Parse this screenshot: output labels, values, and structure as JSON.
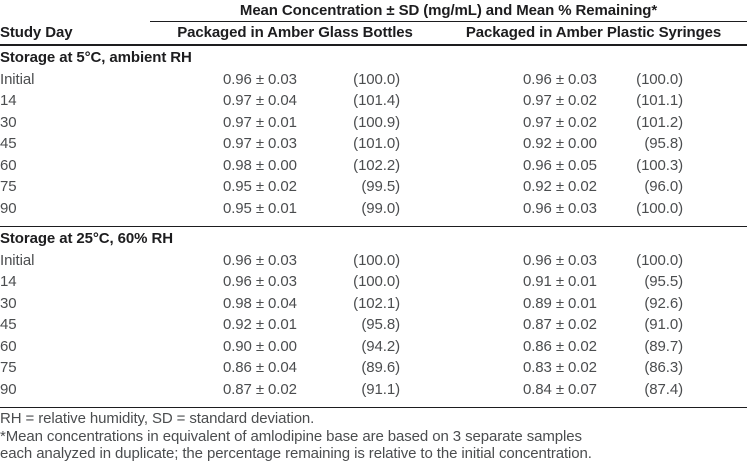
{
  "table": {
    "span_header": "Mean Concentration ± SD (mg/mL) and Mean % Remaining*",
    "columns": [
      "Study Day",
      "Packaged in Amber Glass Bottles",
      "Packaged in Amber Plastic Syringes"
    ],
    "sections": [
      {
        "title": "Storage at 5°C, ambient RH",
        "rows": [
          {
            "day": "Initial",
            "glass_conc": "0.96 ± 0.03",
            "glass_pct": "(100.0)",
            "syringe_conc": "0.96 ± 0.03",
            "syringe_pct": "(100.0)"
          },
          {
            "day": "14",
            "glass_conc": "0.97 ± 0.04",
            "glass_pct": "(101.4)",
            "syringe_conc": "0.97 ± 0.02",
            "syringe_pct": "(101.1)"
          },
          {
            "day": "30",
            "glass_conc": "0.97 ± 0.01",
            "glass_pct": "(100.9)",
            "syringe_conc": "0.97 ± 0.02",
            "syringe_pct": "(101.2)"
          },
          {
            "day": "45",
            "glass_conc": "0.97 ± 0.03",
            "glass_pct": "(101.0)",
            "syringe_conc": "0.92 ± 0.00",
            "syringe_pct": "(95.8)"
          },
          {
            "day": "60",
            "glass_conc": "0.98 ± 0.00",
            "glass_pct": "(102.2)",
            "syringe_conc": "0.96 ± 0.05",
            "syringe_pct": "(100.3)"
          },
          {
            "day": "75",
            "glass_conc": "0.95 ± 0.02",
            "glass_pct": "(99.5)",
            "syringe_conc": "0.92 ± 0.02",
            "syringe_pct": "(96.0)"
          },
          {
            "day": "90",
            "glass_conc": "0.95 ± 0.01",
            "glass_pct": "(99.0)",
            "syringe_conc": "0.96 ± 0.03",
            "syringe_pct": "(100.0)"
          }
        ]
      },
      {
        "title": "Storage at 25°C, 60% RH",
        "rows": [
          {
            "day": "Initial",
            "glass_conc": "0.96 ± 0.03",
            "glass_pct": "(100.0)",
            "syringe_conc": "0.96 ± 0.03",
            "syringe_pct": "(100.0)"
          },
          {
            "day": "14",
            "glass_conc": "0.96 ± 0.03",
            "glass_pct": "(100.0)",
            "syringe_conc": "0.91 ± 0.01",
            "syringe_pct": "(95.5)"
          },
          {
            "day": "30",
            "glass_conc": "0.98 ± 0.04",
            "glass_pct": "(102.1)",
            "syringe_conc": "0.89 ± 0.01",
            "syringe_pct": "(92.6)"
          },
          {
            "day": "45",
            "glass_conc": "0.92 ± 0.01",
            "glass_pct": "(95.8)",
            "syringe_conc": "0.87 ± 0.02",
            "syringe_pct": "(91.0)"
          },
          {
            "day": "60",
            "glass_conc": "0.90 ± 0.00",
            "glass_pct": "(94.2)",
            "syringe_conc": "0.86 ± 0.02",
            "syringe_pct": "(89.7)"
          },
          {
            "day": "75",
            "glass_conc": "0.86 ± 0.04",
            "glass_pct": "(89.6)",
            "syringe_conc": "0.83 ± 0.02",
            "syringe_pct": "(86.3)"
          },
          {
            "day": "90",
            "glass_conc": "0.87 ± 0.02",
            "glass_pct": "(91.1)",
            "syringe_conc": "0.84 ± 0.07",
            "syringe_pct": "(87.4)"
          }
        ]
      }
    ],
    "footnotes": [
      "RH = relative humidity, SD = standard deviation.",
      "*Mean concentrations in equivalent of amlodipine base are based on 3 separate samples",
      "each analyzed in duplicate; the percentage remaining is relative to the initial concentration."
    ]
  }
}
